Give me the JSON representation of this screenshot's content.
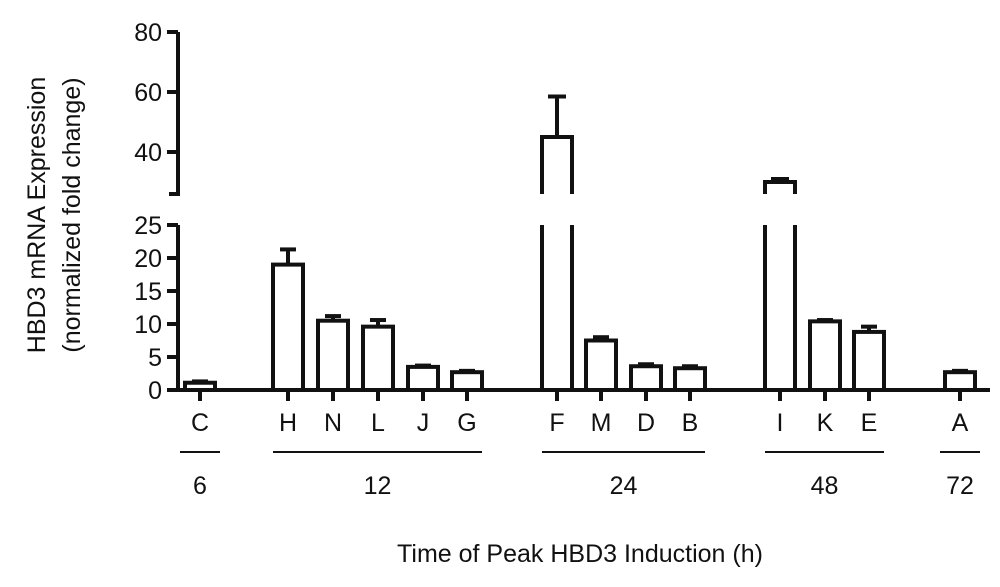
{
  "chart_data": {
    "type": "bar",
    "xlabel": "Time of Peak HBD3 Induction (h)",
    "ylabel": "HBD3 mRNA Expression",
    "ylabel2": "(normalized fold change)",
    "axis_break": [
      26,
      26
    ],
    "y_lower_range": [
      0,
      25
    ],
    "y_upper_range": [
      26,
      80
    ],
    "y_lower_ticks": [
      "0",
      "5",
      "10",
      "15",
      "20",
      "25"
    ],
    "y_upper_ticks": [
      "40",
      "60",
      "80"
    ],
    "categories": [
      "C",
      "H",
      "N",
      "L",
      "J",
      "G",
      "F",
      "M",
      "D",
      "B",
      "I",
      "K",
      "E",
      "A"
    ],
    "values": [
      1.1,
      19,
      10.5,
      9.6,
      3.5,
      2.7,
      45,
      7.5,
      3.6,
      3.3,
      30,
      10.4,
      8.8,
      2.7
    ],
    "errors": [
      0.2,
      2.3,
      0.7,
      1.0,
      0.2,
      0.2,
      13.5,
      0.5,
      0.3,
      0.3,
      1.0,
      0.2,
      0.8,
      0.2
    ],
    "groups": [
      {
        "label": "6",
        "members": [
          "C"
        ]
      },
      {
        "label": "12",
        "members": [
          "H",
          "N",
          "L",
          "J",
          "G"
        ]
      },
      {
        "label": "24",
        "members": [
          "F",
          "M",
          "D",
          "B"
        ]
      },
      {
        "label": "48",
        "members": [
          "I",
          "K",
          "E"
        ]
      },
      {
        "label": "72",
        "members": [
          "A"
        ]
      }
    ],
    "bar_fill": "#ffffff",
    "bar_stroke": "#111111"
  }
}
